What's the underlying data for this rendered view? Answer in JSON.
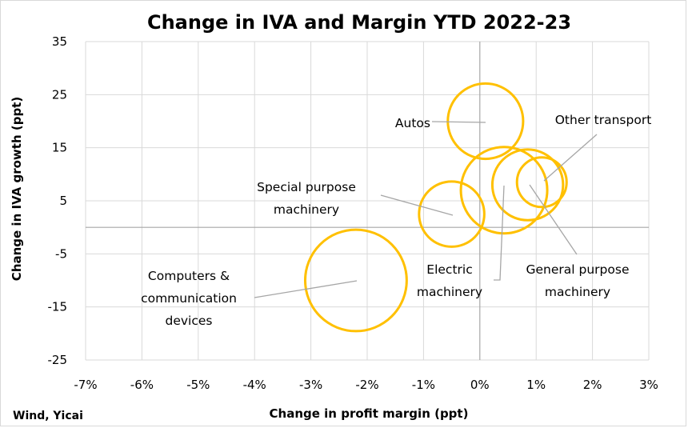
{
  "chart_data": {
    "type": "bubble",
    "title": "Change in IVA and Margin YTD 2022-23",
    "xlabel": "Change in profit margin (ppt)",
    "ylabel": "Change in IVA growth (ppt)",
    "source": "Wind, Yicai",
    "xlim": [
      -7,
      3
    ],
    "ylim": [
      -25,
      35
    ],
    "x_ticks": [
      "-7%",
      "-6%",
      "-5%",
      "-4%",
      "-3%",
      "-2%",
      "-1%",
      "0%",
      "1%",
      "2%",
      "3%"
    ],
    "y_ticks": [
      "35",
      "25",
      "15",
      "5",
      "-5",
      "-15",
      "-25"
    ],
    "grid": true,
    "bubble_color": "#FFC000",
    "points": [
      {
        "label_lines": [
          "Autos"
        ],
        "x": 0.1,
        "y": 20,
        "size": 0.76
      },
      {
        "label_lines": [
          "Other transport"
        ],
        "x": 1.1,
        "y": 8.5,
        "size": 0.33
      },
      {
        "label_lines": [
          "Special purpose",
          "machinery"
        ],
        "x": -0.5,
        "y": 2.5,
        "size": 0.57
      },
      {
        "label_lines": [
          "Electric",
          "machinery"
        ],
        "x": 0.43,
        "y": 7,
        "size": 1.0
      },
      {
        "label_lines": [
          "General purpose",
          "machinery"
        ],
        "x": 0.85,
        "y": 8,
        "size": 0.67
      },
      {
        "label_lines": [
          "Computers &",
          "communication",
          "devices"
        ],
        "x": -2.2,
        "y": -10,
        "size": 1.38
      }
    ]
  }
}
